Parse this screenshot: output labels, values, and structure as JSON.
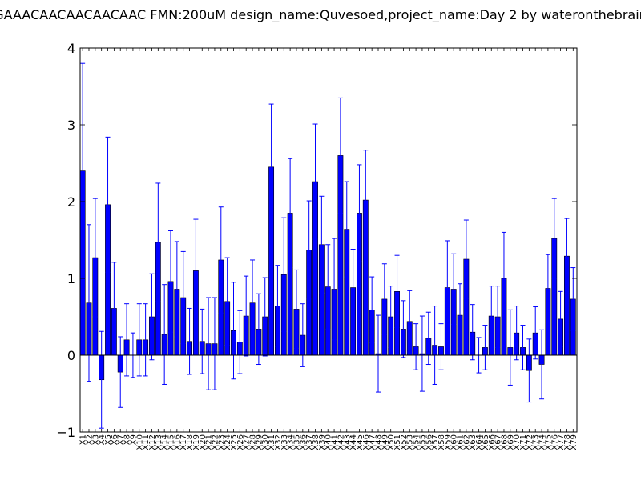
{
  "chart_data": {
    "type": "bar",
    "title": "GAAACAACAACAACAAC  FMN:200uM  design_name:Quvesoed,project_name:Day 2 by wateronthebrain",
    "xlabel": "",
    "ylabel": "",
    "ylim": [
      -1,
      4
    ],
    "yticks": [
      -1,
      0,
      1,
      2,
      3,
      4
    ],
    "grid": false,
    "bar_color": "#0000ff",
    "error_color": "#0000ff",
    "categories": [
      "X1",
      "X2",
      "X3",
      "X4",
      "X5",
      "X6",
      "X7",
      "X8",
      "X9",
      "X10",
      "X11",
      "X12",
      "X13",
      "X14",
      "X15",
      "X16",
      "X17",
      "X18",
      "X19",
      "X20",
      "X21",
      "X22",
      "X23",
      "X24",
      "X25",
      "X26",
      "X27",
      "X28",
      "X29",
      "X30",
      "X31",
      "X32",
      "X33",
      "X34",
      "X35",
      "X36",
      "X37",
      "X38",
      "X39",
      "X40",
      "X41",
      "X42",
      "X43",
      "X44",
      "X45",
      "X46",
      "X47",
      "X48",
      "X49",
      "X50",
      "X51",
      "X52",
      "X53",
      "X54",
      "X55",
      "X56",
      "X57",
      "X58",
      "X59",
      "X60",
      "X61",
      "X62",
      "X63",
      "X64",
      "X65",
      "X66",
      "X67",
      "X68",
      "X69",
      "X70",
      "X71",
      "X72",
      "X73",
      "X74",
      "X75",
      "X76",
      "X77",
      "X78",
      "X79"
    ],
    "values": [
      2.4,
      0.68,
      1.27,
      -0.32,
      1.96,
      0.61,
      -0.22,
      0.2,
      0,
      0.2,
      0.2,
      0.5,
      1.47,
      0.27,
      0.96,
      0.86,
      0.75,
      0.18,
      1.1,
      0.18,
      0.15,
      0.15,
      1.24,
      0.7,
      0.32,
      0.17,
      0.51,
      0.68,
      0.34,
      0.5,
      2.45,
      0.64,
      1.05,
      1.85,
      0.6,
      0.26,
      1.37,
      2.26,
      1.44,
      0.89,
      0.86,
      2.6,
      1.64,
      0.88,
      1.85,
      2.02,
      0.59,
      0.02,
      0.73,
      0.5,
      0.83,
      0.34,
      0.44,
      0.11,
      0.02,
      0.22,
      0.13,
      0.11,
      0.88,
      0.86,
      0.52,
      1.25,
      0.3,
      0,
      0.1,
      0.51,
      0.5,
      1,
      0.1,
      0.29,
      0.1,
      -0.2,
      0.29,
      -0.12,
      0.87,
      1.52,
      0.47,
      1.29,
      0.73
    ],
    "errors": [
      1.4,
      1.02,
      0.77,
      0.63,
      0.88,
      0.6,
      0.46,
      0.47,
      0.29,
      0.47,
      0.47,
      0.56,
      0.77,
      0.65,
      0.66,
      0.62,
      0.6,
      0.43,
      0.67,
      0.42,
      0.6,
      0.6,
      0.69,
      0.57,
      0.63,
      0.41,
      0.52,
      0.56,
      0.46,
      0.51,
      0.82,
      0.53,
      0.74,
      0.71,
      0.51,
      0.41,
      0.64,
      0.75,
      0.63,
      0.55,
      0.66,
      0.75,
      0.62,
      0.5,
      0.63,
      0.65,
      0.43,
      0.5,
      0.46,
      0.4,
      0.47,
      0.37,
      0.4,
      0.3,
      0.49,
      0.34,
      0.51,
      0.3,
      0.61,
      0.46,
      0.41,
      0.51,
      0.36,
      0.23,
      0.29,
      0.39,
      0.4,
      0.6,
      0.49,
      0.35,
      0.29,
      0.41,
      0.34,
      0.45,
      0.44,
      0.52,
      0.36,
      0.49,
      0.41
    ]
  }
}
